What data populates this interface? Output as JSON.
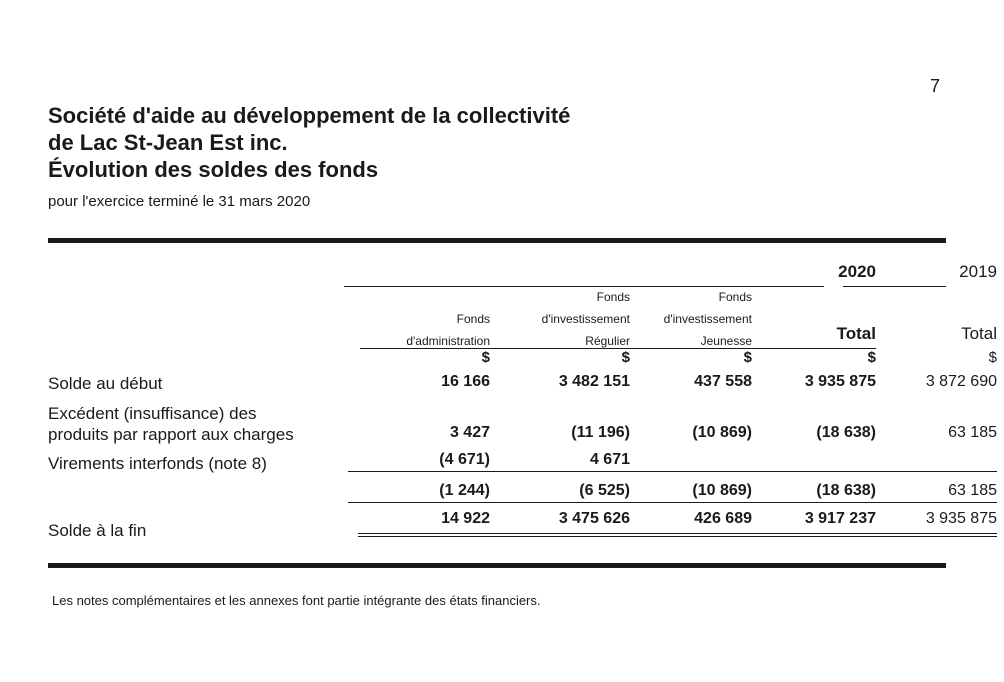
{
  "page_number": "7",
  "title": {
    "line1": "Société d'aide au développement de la collectivité",
    "line2": "de Lac St-Jean Est inc.",
    "line3": "Évolution des soldes des fonds"
  },
  "subtitle": "pour l'exercice terminé le 31 mars 2020",
  "years": {
    "current": "2020",
    "prior": "2019"
  },
  "column_headers": {
    "admin": [
      "Fonds",
      "d'administration"
    ],
    "regulier": [
      "Fonds",
      "d'investissement",
      "Régulier"
    ],
    "jeunesse": [
      "Fonds",
      "d'investissement",
      "Jeunesse"
    ],
    "total_current": "Total",
    "total_prior": "Total"
  },
  "currency_symbol": "$",
  "rows": {
    "solde_debut": {
      "label": "Solde au début",
      "values": [
        "16 166",
        "3 482 151",
        "437 558",
        "3 935 875",
        "3 872 690"
      ]
    },
    "excedent": {
      "label_line1": "Excédent (insuffisance) des",
      "label_line2": "produits par rapport aux charges",
      "values": [
        "3 427",
        "(11 196)",
        "(10 869)",
        "(18 638)",
        "63 185"
      ]
    },
    "virements": {
      "label": "Virements interfonds (note 8)",
      "values": [
        "(4 671)",
        "4 671",
        "",
        "",
        ""
      ]
    },
    "subtotal": {
      "values": [
        "(1 244)",
        "(6 525)",
        "(10 869)",
        "(18 638)",
        "63 185"
      ]
    },
    "solde_fin": {
      "label": "Solde à la fin",
      "values": [
        "14 922",
        "3 475 626",
        "426 689",
        "3 917 237",
        "3 935 875"
      ]
    }
  },
  "footnote": "Les notes complémentaires et les annexes font partie intégrante des états financiers."
}
